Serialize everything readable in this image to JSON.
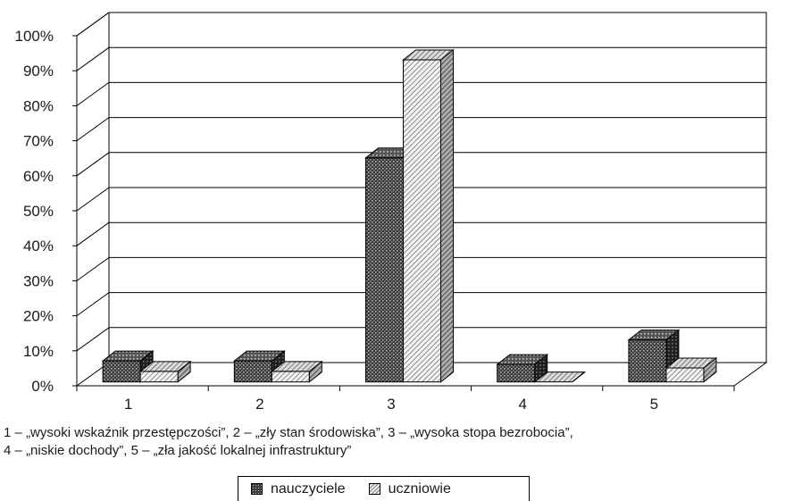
{
  "chart_data": {
    "type": "bar",
    "categories": [
      "1",
      "2",
      "3",
      "4",
      "5"
    ],
    "series": [
      {
        "name": "nauczyciele",
        "values": [
          6,
          6,
          64,
          5,
          12
        ]
      },
      {
        "name": "uczniowie",
        "values": [
          3,
          3,
          92,
          0,
          4
        ]
      }
    ],
    "ylim": [
      0,
      100
    ],
    "y_ticks": [
      "0%",
      "10%",
      "20%",
      "30%",
      "40%",
      "50%",
      "60%",
      "70%",
      "80%",
      "90%",
      "100%"
    ],
    "grid": true,
    "legend_position": "bottom",
    "style": "3d clustered columns, grayscale patterns"
  },
  "caption": {
    "line1": "1 – „wysoki wskaźnik przestępczości”, 2 – „zły stan środowiska”, 3 – „wysoka stopa bezrobocia”,",
    "line2": "4 – „niskie dochody”, 5 – „zła jakość lokalnej infrastruktury”"
  },
  "legend": {
    "items": [
      "nauczyciele",
      "uczniowie"
    ]
  },
  "colors": {
    "series_dark": "#3c3c3c",
    "series_light": "#f2f2f2",
    "axis": "#000000",
    "grid": "#000000"
  }
}
